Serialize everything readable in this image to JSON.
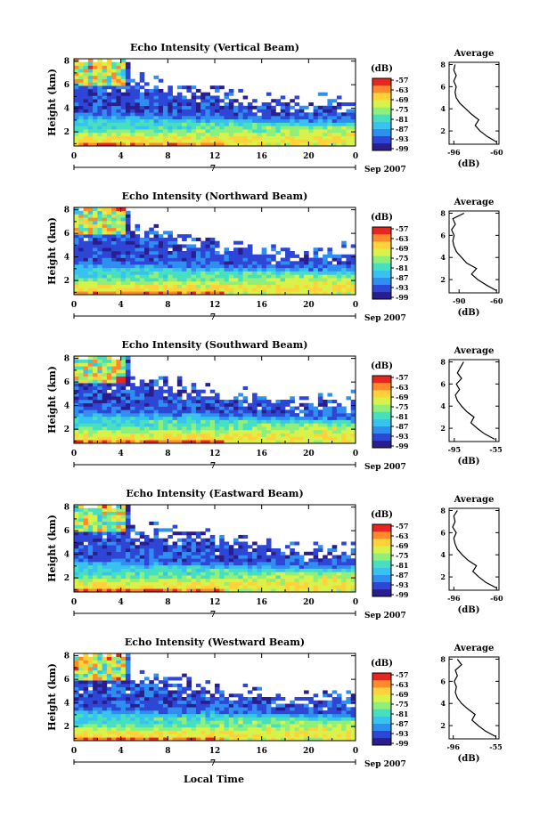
{
  "page": {
    "xlabel": "Local Time",
    "date_label": "Sep 2007",
    "day_label": "7",
    "colorbar_unit": "(dB)",
    "avg_title": "Average",
    "avg_xlabel": "(dB)",
    "ylabel": "Height (km)"
  },
  "colors": {
    "scale": [
      "#2a1d8e",
      "#2e46d6",
      "#2f8ff0",
      "#37c2ef",
      "#46e0c0",
      "#8ef07a",
      "#d9f24a",
      "#ffd23a",
      "#ff8a2a",
      "#e8261f"
    ]
  },
  "chart_data": [
    {
      "type": "heatmap",
      "title": "Echo Intensity (Vertical Beam)",
      "xlabel": "Local Time",
      "ylabel": "Height (km)",
      "xticks": [
        "0",
        "4",
        "8",
        "12",
        "16",
        "20",
        "0"
      ],
      "xlim": [
        0,
        24
      ],
      "yticks": [
        "2",
        "4",
        "6",
        "8"
      ],
      "ylim": [
        0.8,
        8.2
      ],
      "colorbar": {
        "label": "(dB)",
        "ticks": [
          "-57",
          "-63",
          "-69",
          "-75",
          "-81",
          "-87",
          "-93",
          "-99"
        ]
      },
      "average_profile": {
        "title": "Average",
        "xlabel": "(dB)",
        "xticks": [
          "-96",
          "-60"
        ],
        "xlim": [
          -100,
          -58
        ],
        "heights": [
          1.0,
          1.5,
          2.0,
          2.5,
          3.0,
          3.5,
          4.0,
          4.5,
          5.0,
          5.5,
          6.0,
          6.5,
          7.0,
          7.5,
          8.0
        ],
        "values": [
          -60,
          -68,
          -74,
          -78,
          -75,
          -81,
          -86,
          -91,
          -94,
          -95,
          -94,
          -96,
          -94,
          -96,
          -95
        ]
      }
    },
    {
      "type": "heatmap",
      "title": "Echo Intensity (Northward Beam)",
      "xlabel": "Local Time",
      "ylabel": "Height (km)",
      "xticks": [
        "0",
        "4",
        "8",
        "12",
        "16",
        "20",
        "0"
      ],
      "xlim": [
        0,
        24
      ],
      "yticks": [
        "2",
        "4",
        "6",
        "8"
      ],
      "ylim": [
        0.8,
        8.2
      ],
      "colorbar": {
        "label": "(dB)",
        "ticks": [
          "-57",
          "-63",
          "-69",
          "-75",
          "-81",
          "-87",
          "-93",
          "-99"
        ]
      },
      "average_profile": {
        "title": "Average",
        "xlabel": "(dB)",
        "xticks": [
          "-90",
          "-60"
        ],
        "xlim": [
          -98,
          -58
        ],
        "heights": [
          1.0,
          1.5,
          2.0,
          2.5,
          3.0,
          3.5,
          4.0,
          4.5,
          5.0,
          5.5,
          6.0,
          6.5,
          7.0,
          7.5,
          8.0
        ],
        "values": [
          -60,
          -68,
          -75,
          -80,
          -76,
          -84,
          -88,
          -92,
          -94,
          -95,
          -94,
          -96,
          -93,
          -95,
          -86
        ]
      }
    },
    {
      "type": "heatmap",
      "title": "Echo Intensity (Southward Beam)",
      "xlabel": "Local Time",
      "ylabel": "Height (km)",
      "xticks": [
        "0",
        "4",
        "8",
        "12",
        "16",
        "20",
        "0"
      ],
      "xlim": [
        0,
        24
      ],
      "yticks": [
        "2",
        "4",
        "6",
        "8"
      ],
      "ylim": [
        0.8,
        8.2
      ],
      "colorbar": {
        "label": "(dB)",
        "ticks": [
          "-57",
          "-63",
          "-69",
          "-75",
          "-81",
          "-87",
          "-93",
          "-99"
        ]
      },
      "average_profile": {
        "title": "Average",
        "xlabel": "(dB)",
        "xticks": [
          "-95",
          "-55"
        ],
        "xlim": [
          -100,
          -52
        ],
        "heights": [
          1.0,
          1.5,
          2.0,
          2.5,
          3.0,
          3.5,
          4.0,
          4.5,
          5.0,
          5.5,
          6.0,
          6.5,
          7.0,
          7.5,
          8.0
        ],
        "values": [
          -56,
          -66,
          -73,
          -79,
          -76,
          -83,
          -88,
          -92,
          -94,
          -90,
          -93,
          -88,
          -92,
          -89,
          -86
        ]
      }
    },
    {
      "type": "heatmap",
      "title": "Echo Intensity (Eastward Beam)",
      "xlabel": "Local Time",
      "ylabel": "Height (km)",
      "xticks": [
        "0",
        "4",
        "8",
        "12",
        "16",
        "20",
        "0"
      ],
      "xlim": [
        0,
        24
      ],
      "yticks": [
        "2",
        "4",
        "6",
        "8"
      ],
      "ylim": [
        0.8,
        8.2
      ],
      "colorbar": {
        "label": "(dB)",
        "ticks": [
          "-57",
          "-63",
          "-69",
          "-75",
          "-81",
          "-87",
          "-93",
          "-99"
        ]
      },
      "average_profile": {
        "title": "Average",
        "xlabel": "(dB)",
        "xticks": [
          "-96",
          "-60"
        ],
        "xlim": [
          -100,
          -58
        ],
        "heights": [
          1.0,
          1.5,
          2.0,
          2.5,
          3.0,
          3.5,
          4.0,
          4.5,
          5.0,
          5.5,
          6.0,
          6.5,
          7.0,
          7.5,
          8.0
        ],
        "values": [
          -60,
          -69,
          -75,
          -80,
          -77,
          -84,
          -89,
          -93,
          -95,
          -96,
          -94,
          -97,
          -95,
          -96,
          -93
        ]
      }
    },
    {
      "type": "heatmap",
      "title": "Echo Intensity (Westward Beam)",
      "xlabel": "Local Time",
      "ylabel": "Height (km)",
      "xticks": [
        "0",
        "4",
        "8",
        "12",
        "16",
        "20",
        "0"
      ],
      "xlim": [
        0,
        24
      ],
      "yticks": [
        "2",
        "4",
        "6",
        "8"
      ],
      "ylim": [
        0.8,
        8.2
      ],
      "colorbar": {
        "label": "(dB)",
        "ticks": [
          "-57",
          "-63",
          "-69",
          "-75",
          "-81",
          "-87",
          "-93",
          "-99"
        ]
      },
      "average_profile": {
        "title": "Average",
        "xlabel": "(dB)",
        "xticks": [
          "-96",
          "-55"
        ],
        "xlim": [
          -100,
          -52
        ],
        "heights": [
          1.0,
          1.5,
          2.0,
          2.5,
          3.0,
          3.5,
          4.0,
          4.5,
          5.0,
          5.5,
          6.0,
          6.5,
          7.0,
          7.5,
          8.0
        ],
        "values": [
          -55,
          -65,
          -72,
          -78,
          -75,
          -82,
          -88,
          -92,
          -94,
          -93,
          -95,
          -92,
          -94,
          -88,
          -92
        ]
      }
    }
  ]
}
